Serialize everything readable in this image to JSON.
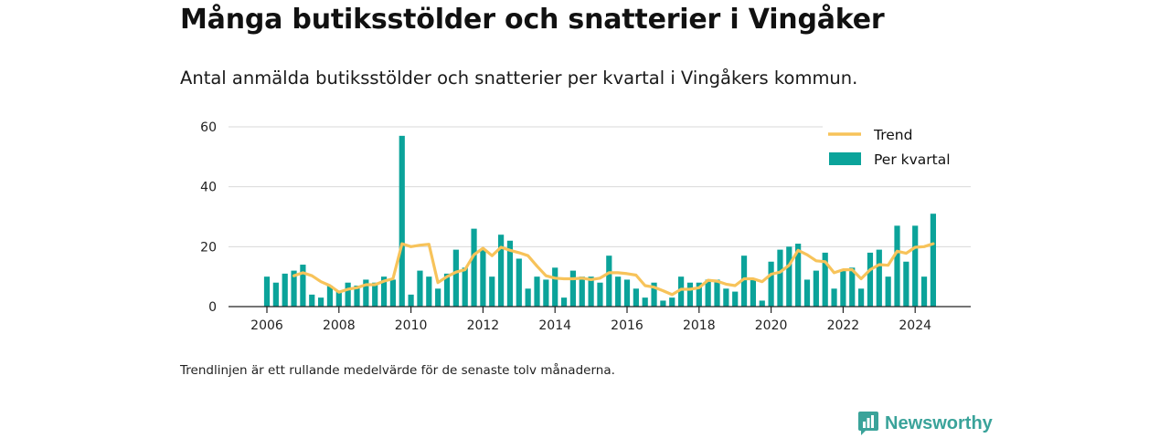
{
  "title": "Många butiksstölder och snatterier i Vingåker",
  "subtitle": "Antal anmälda butiksstölder och snatterier per kvartal i Vingåkers kommun.",
  "footnote": "Trendlinjen är ett rullande medelvärde för de senaste tolv månaderna.",
  "brand": {
    "name": "Newsworthy",
    "icon": "newsworthy-logo-icon",
    "color": "#3aa39a"
  },
  "chart_data": {
    "type": "bar",
    "x_start": "2006 Q1",
    "x_ticks": [
      "2006",
      "2008",
      "2010",
      "2012",
      "2014",
      "2016",
      "2018",
      "2020",
      "2022",
      "2024"
    ],
    "y_ticks": [
      "0",
      "20",
      "40",
      "60"
    ],
    "ylim": [
      0,
      60
    ],
    "grid": true,
    "legend_position": "top-right",
    "series": [
      {
        "name": "Per kvartal",
        "type": "bar",
        "color": "#0ba39a",
        "values": [
          10,
          8,
          11,
          12,
          14,
          4,
          3,
          7,
          5,
          8,
          7,
          9,
          8,
          10,
          9,
          57,
          4,
          12,
          10,
          6,
          11,
          19,
          13,
          26,
          19,
          10,
          24,
          22,
          16,
          6,
          10,
          9,
          13,
          3,
          12,
          10,
          10,
          8,
          17,
          10,
          9,
          6,
          3,
          8,
          2,
          3,
          10,
          8,
          8,
          9,
          9,
          6,
          5,
          17,
          9,
          2,
          15,
          19,
          20,
          21,
          9,
          12,
          18,
          6,
          12,
          13,
          6,
          18,
          19,
          10,
          27,
          15,
          27,
          10,
          31
        ]
      },
      {
        "name": "Trend",
        "type": "line",
        "color": "#f7c35a",
        "values": [
          null,
          null,
          null,
          10.3,
          11.3,
          10.3,
          8.3,
          7.0,
          4.8,
          5.8,
          6.3,
          7.3,
          7.3,
          8.5,
          9.3,
          21.0,
          20.0,
          20.5,
          20.8,
          8.0,
          10.0,
          11.5,
          12.3,
          17.3,
          19.5,
          17.0,
          19.8,
          18.8,
          18.0,
          17.0,
          13.5,
          10.3,
          9.5,
          9.3,
          9.3,
          9.5,
          9.0,
          9.5,
          11.3,
          11.3,
          11.0,
          10.5,
          7.0,
          6.5,
          5.3,
          4.0,
          5.8,
          5.8,
          6.3,
          8.8,
          8.5,
          7.5,
          7.0,
          9.3,
          9.3,
          8.3,
          10.8,
          11.5,
          13.8,
          18.8,
          17.3,
          15.3,
          15.0,
          11.3,
          12.3,
          12.3,
          9.3,
          12.3,
          14.0,
          13.8,
          18.5,
          17.8,
          19.8,
          20.0,
          21.0
        ]
      }
    ]
  }
}
